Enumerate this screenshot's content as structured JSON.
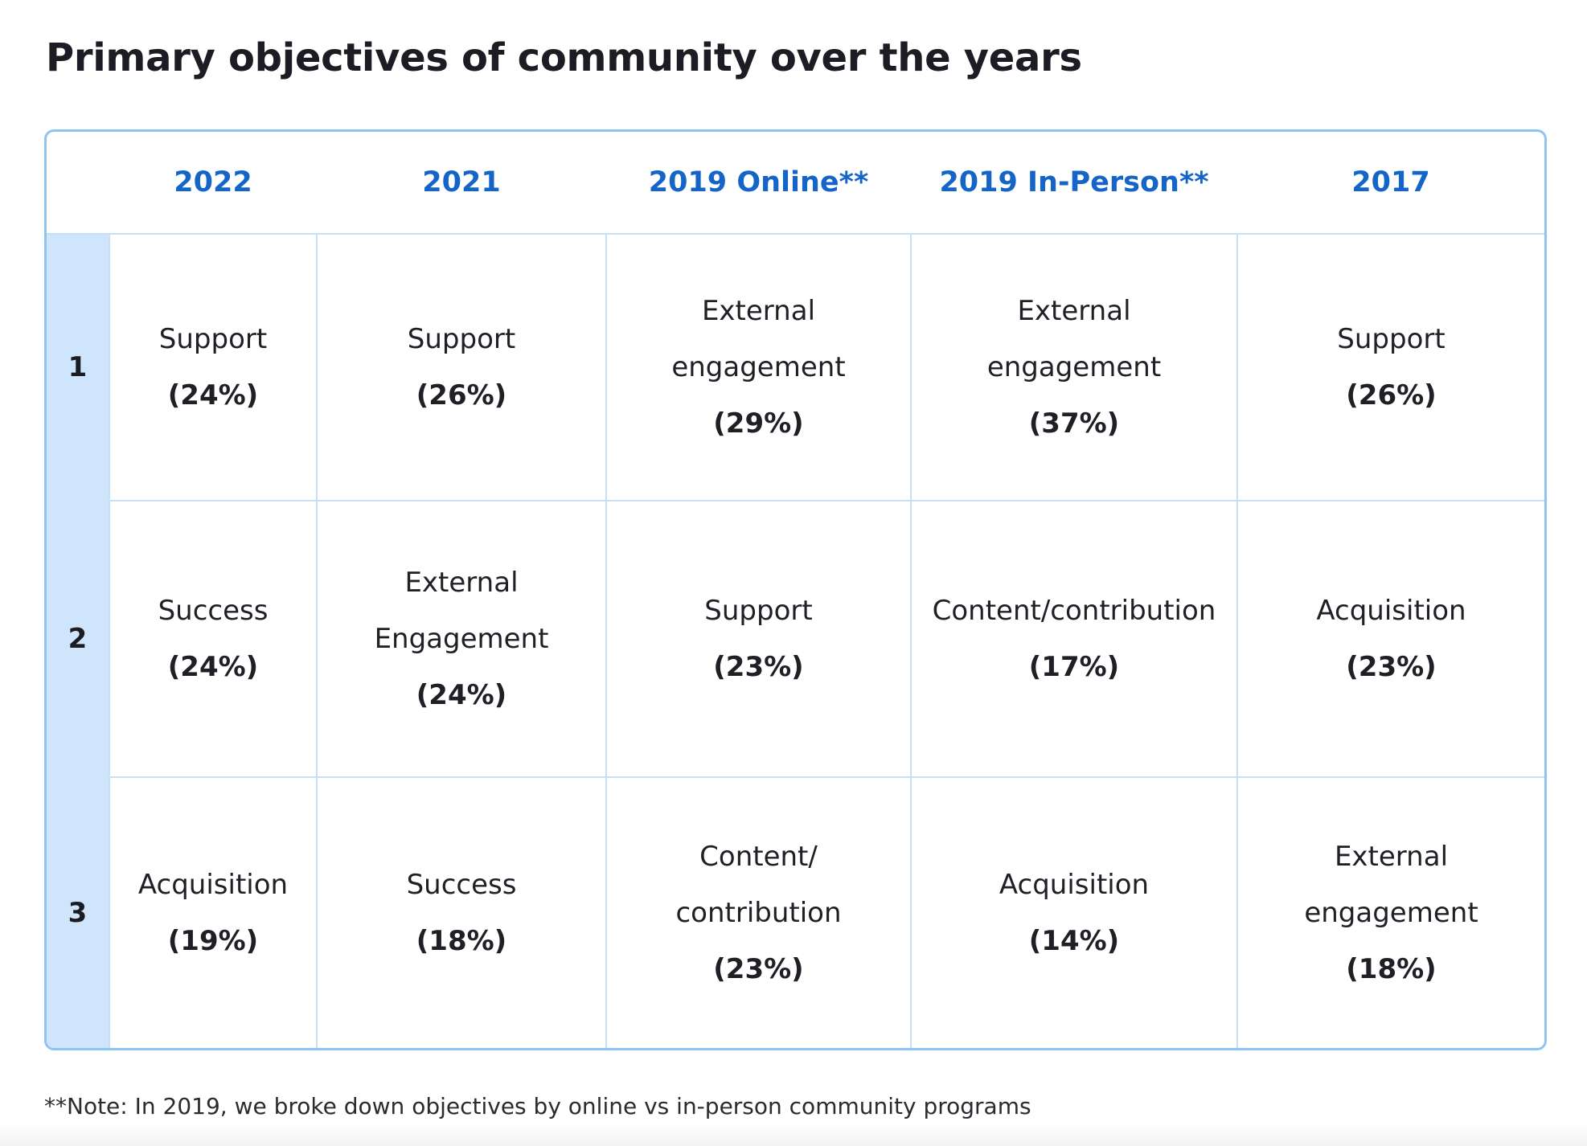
{
  "title": "Primary objectives of community over the years",
  "chart_data": {
    "type": "table",
    "columns": [
      "2022",
      "2021",
      "2019 Online**",
      "2019 In-Person**",
      "2017"
    ],
    "rows": [
      {
        "rank": "1",
        "cells": [
          {
            "label": "Support",
            "pct": "(24%)"
          },
          {
            "label": "Support",
            "pct": "(26%)"
          },
          {
            "label": "External engagement",
            "pct": "(29%)"
          },
          {
            "label": "External engagement",
            "pct": "(37%)"
          },
          {
            "label": "Support",
            "pct": "(26%)"
          }
        ]
      },
      {
        "rank": "2",
        "cells": [
          {
            "label": "Success",
            "pct": "(24%)"
          },
          {
            "label": "External Engagement",
            "pct": "(24%)"
          },
          {
            "label": "Support",
            "pct": "(23%)"
          },
          {
            "label": "Content/contribution",
            "pct": "(17%)"
          },
          {
            "label": "Acquisition",
            "pct": "(23%)"
          }
        ]
      },
      {
        "rank": "3",
        "cells": [
          {
            "label": "Acquisition",
            "pct": "(19%)"
          },
          {
            "label": "Success",
            "pct": "(18%)"
          },
          {
            "label": "Content/ contribution",
            "pct": "(23%)"
          },
          {
            "label": "Acquisition",
            "pct": "(14%)"
          },
          {
            "label": "External engagement",
            "pct": "(18%)"
          }
        ]
      }
    ]
  },
  "note": "**Note: In 2019, we broke down objectives by online vs in-person community programs",
  "colors": {
    "header_text": "#1565c8",
    "rank_column_bg": "#cfe5fc",
    "border": "#8ec4f1"
  }
}
